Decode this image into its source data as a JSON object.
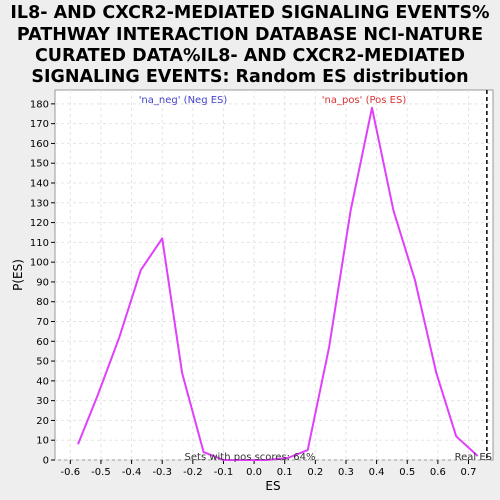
{
  "chart_data": {
    "type": "line",
    "title_lines": [
      "IL8- AND CXCR2-MEDIATED SIGNALING EVENTS%",
      "PATHWAY INTERACTION DATABASE NCI-NATURE",
      "CURATED DATA%IL8- AND CXCR2-MEDIATED",
      "SIGNALING EVENTS: Random ES distribution"
    ],
    "xlabel": "ES",
    "ylabel": "P(ES)",
    "xlim": [
      -0.65,
      0.78
    ],
    "ylim": [
      0,
      187
    ],
    "xticks": [
      -0.6,
      -0.5,
      -0.4,
      -0.3,
      -0.2,
      -0.1,
      0.0,
      0.1,
      0.2,
      0.3,
      0.4,
      0.5,
      0.6,
      0.7
    ],
    "xtick_labels": [
      "-0.6",
      "-0.5",
      "-0.4",
      "-0.3",
      "-0.2",
      "-0.1",
      "0.0",
      "0.1",
      "0.2",
      "0.3",
      "0.4",
      "0.5",
      "0.6",
      "0.7"
    ],
    "yticks": [
      0,
      10,
      20,
      30,
      40,
      50,
      60,
      70,
      80,
      90,
      100,
      110,
      120,
      130,
      140,
      150,
      160,
      170,
      180
    ],
    "grid": true,
    "line_color": "#e040fb",
    "x": [
      -0.575,
      -0.51,
      -0.44,
      -0.37,
      -0.3,
      -0.235,
      -0.165,
      -0.1,
      -0.03,
      0.04,
      0.11,
      0.175,
      0.245,
      0.315,
      0.385,
      0.455,
      0.525,
      0.595,
      0.66,
      0.73
    ],
    "y": [
      8,
      33,
      62,
      96,
      112,
      44,
      4,
      0,
      0,
      0,
      1,
      5,
      57,
      126,
      178,
      126,
      91,
      44,
      12,
      2
    ],
    "real_es_x": 0.76,
    "annotations": {
      "neg_label": "'na_neg' (Neg ES)",
      "neg_color": "#4444cc",
      "pos_label": "'na_pos' (Pos ES)",
      "pos_color": "#dd3333",
      "sets_text": "Sets with pos scores: 64%",
      "real_es_text": "Real ES"
    }
  }
}
